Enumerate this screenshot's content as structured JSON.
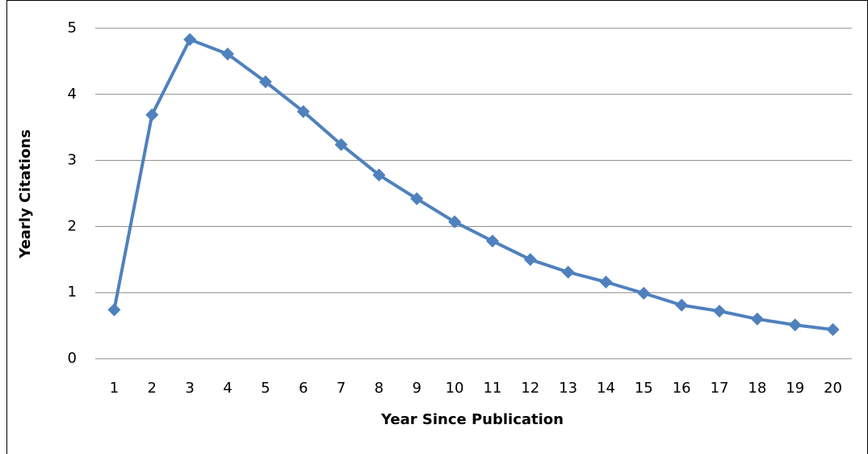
{
  "chart_data": {
    "type": "line",
    "x_label": "Year Since Publication",
    "y_label": "Yearly Citations",
    "categories": [
      "1",
      "2",
      "3",
      "4",
      "5",
      "6",
      "7",
      "8",
      "9",
      "10",
      "11",
      "12",
      "13",
      "14",
      "15",
      "16",
      "17",
      "18",
      "19",
      "20"
    ],
    "values": [
      0.74,
      3.69,
      4.83,
      4.61,
      4.19,
      3.74,
      3.24,
      2.78,
      2.42,
      2.07,
      1.78,
      1.5,
      1.31,
      1.16,
      0.99,
      0.81,
      0.72,
      0.6,
      0.51,
      0.44
    ],
    "color": "#4f81bd",
    "ylim": [
      0,
      5
    ],
    "yticks": [
      0,
      1,
      2,
      3,
      4,
      5
    ],
    "grid": true
  }
}
